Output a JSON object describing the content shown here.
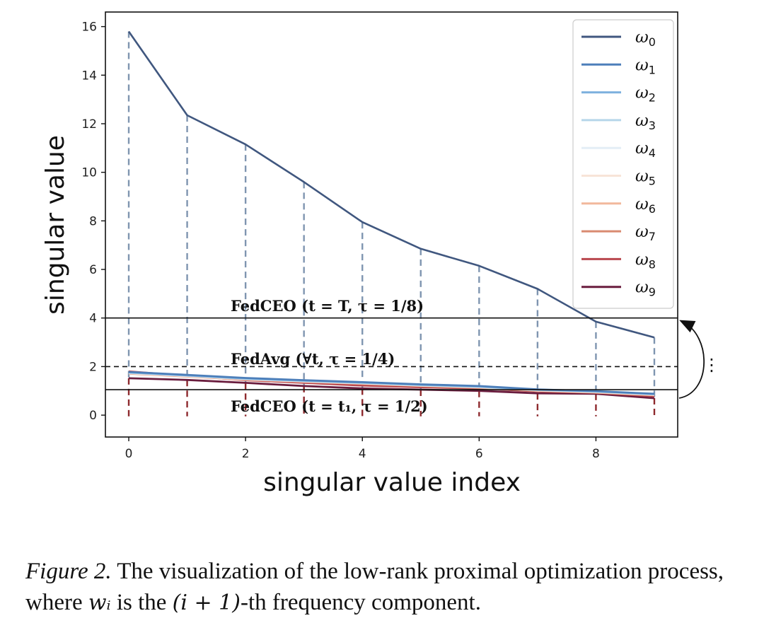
{
  "chart_data": {
    "type": "line",
    "title": "",
    "xlabel": "singular value index",
    "ylabel": "singular value",
    "xlim": [
      -0.4,
      9.4
    ],
    "ylim": [
      -0.9,
      16.6
    ],
    "x_ticks": [
      "0",
      "2",
      "4",
      "6",
      "8"
    ],
    "x_tick_values": [
      0,
      2,
      4,
      6,
      8
    ],
    "y_ticks": [
      "0",
      "2",
      "4",
      "6",
      "8",
      "10",
      "12",
      "14",
      "16"
    ],
    "y_tick_values": [
      0,
      2,
      4,
      6,
      8,
      10,
      12,
      14,
      16
    ],
    "x": [
      0,
      1,
      2,
      3,
      4,
      5,
      6,
      7,
      8,
      9
    ],
    "legend_location": "top-right",
    "series": [
      {
        "name": "ω",
        "sub": "0",
        "color": "#40577f",
        "values": [
          15.8,
          12.35,
          11.15,
          9.6,
          7.95,
          6.85,
          6.15,
          5.2,
          3.85,
          3.2
        ]
      },
      {
        "name": "ω",
        "sub": "1",
        "color": "#4d7fba",
        "values": [
          1.78,
          1.66,
          1.53,
          1.44,
          1.36,
          1.27,
          1.2,
          1.06,
          0.99,
          0.88
        ]
      },
      {
        "name": "ω",
        "sub": "2",
        "color": "#7eb1de",
        "values": [
          1.76,
          1.64,
          1.51,
          1.42,
          1.34,
          1.25,
          1.18,
          1.05,
          0.98,
          0.87
        ]
      },
      {
        "name": "ω",
        "sub": "3",
        "color": "#b6d6ea",
        "values": [
          1.75,
          1.63,
          1.5,
          1.41,
          1.33,
          1.24,
          1.17,
          1.04,
          0.97,
          0.86
        ]
      },
      {
        "name": "ω",
        "sub": "4",
        "color": "#e4eef6",
        "values": [
          1.74,
          1.62,
          1.49,
          1.4,
          1.32,
          1.23,
          1.16,
          1.03,
          0.96,
          0.85
        ]
      },
      {
        "name": "ω",
        "sub": "5",
        "color": "#f8e4d8",
        "values": [
          1.73,
          1.61,
          1.48,
          1.39,
          1.31,
          1.22,
          1.15,
          1.02,
          0.95,
          0.84
        ]
      },
      {
        "name": "ω",
        "sub": "6",
        "color": "#f2b89c",
        "values": [
          1.72,
          1.6,
          1.47,
          1.38,
          1.3,
          1.21,
          1.14,
          1.01,
          0.94,
          0.83
        ]
      },
      {
        "name": "ω",
        "sub": "7",
        "color": "#d98a70",
        "values": [
          1.71,
          1.59,
          1.46,
          1.37,
          1.29,
          1.2,
          1.13,
          1.0,
          0.93,
          0.82
        ]
      },
      {
        "name": "ω",
        "sub": "8",
        "color": "#b9474e",
        "values": [
          1.8,
          1.62,
          1.44,
          1.33,
          1.22,
          1.15,
          1.1,
          0.98,
          0.92,
          0.78
        ]
      },
      {
        "name": "ω",
        "sub": "9",
        "color": "#6a1d3e",
        "values": [
          1.52,
          1.45,
          1.33,
          1.2,
          1.1,
          1.05,
          1.0,
          0.9,
          0.88,
          0.7
        ]
      }
    ],
    "stems": {
      "upper_color": "#7f95b0",
      "lower_color": "#8e2a2e"
    },
    "reference_lines": [
      {
        "y": 4,
        "style": "solid",
        "label": "FedCEO (t = T, τ = 1/8)"
      },
      {
        "y": 2,
        "style": "dashed",
        "label": "FedAvg (∀t, τ = 1/4)"
      },
      {
        "y": 1.05,
        "style": "solid",
        "label": "FedCEO (t = t₁, τ = 1/2)"
      }
    ],
    "side_annotation": "⋮"
  },
  "caption": {
    "figure_label": "Figure 2.",
    "text_part1": " The visualization of the low-rank proximal optimization process, where ",
    "math_wi": "wᵢ",
    "text_part2": " is the ",
    "math_index": "(i + 1)",
    "text_part3": "-th frequency component."
  }
}
